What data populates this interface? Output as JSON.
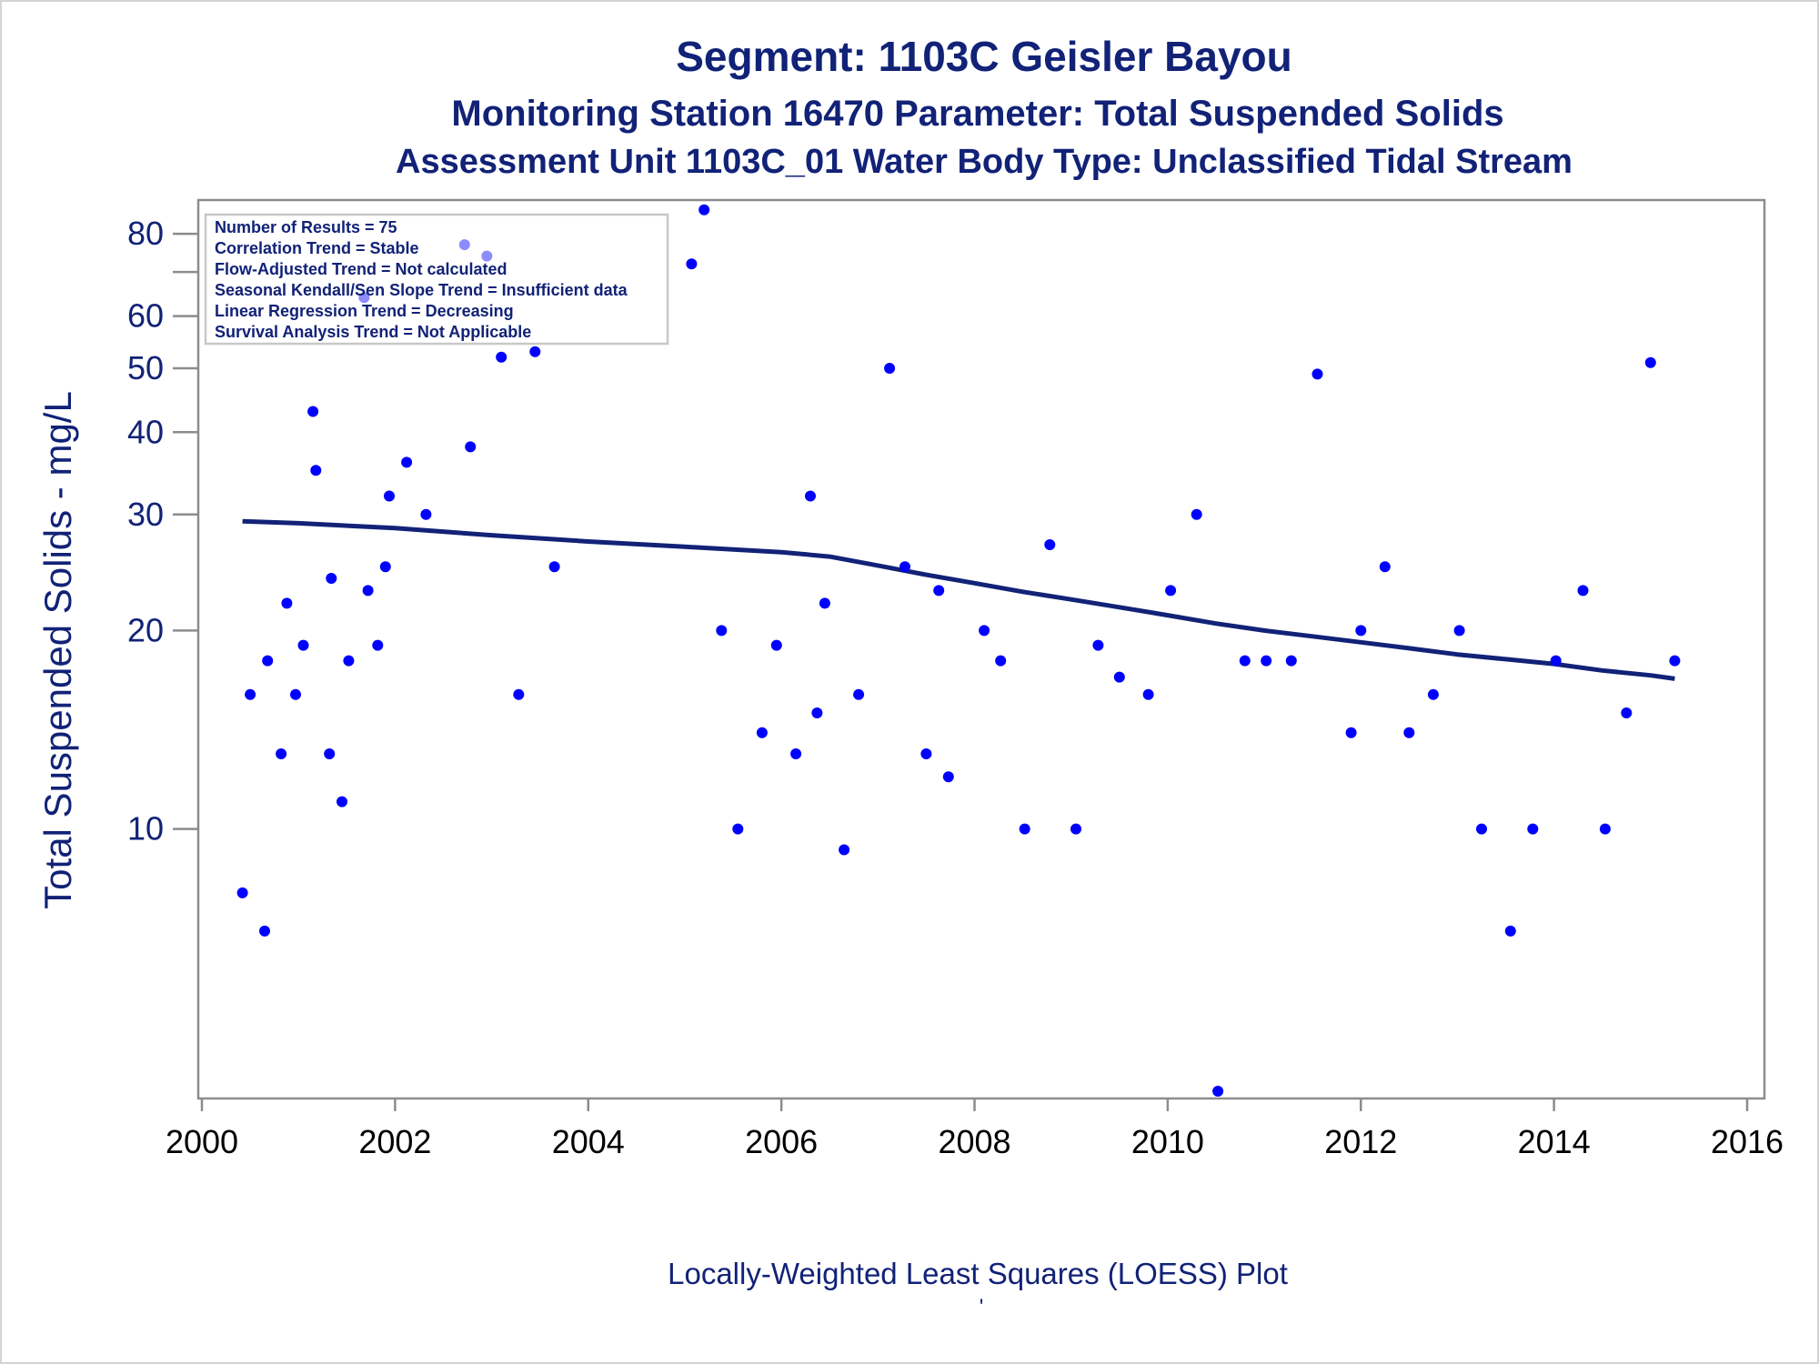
{
  "colors": {
    "title": "#112277",
    "axis_text": "#112277",
    "x_tick_text": "#000000",
    "points": "#0000ff",
    "loess_line": "#112277",
    "plot_border": "#8c8c8c",
    "inset_border": "#c8c8c8"
  },
  "chart_data": {
    "type": "scatter",
    "title": "Segment: 1103C  Geisler Bayou",
    "subtitle": "Monitoring Station 16470 Parameter: Total Suspended Solids",
    "subtitle2": "Assessment Unit 1103C_01   Water Body Type: Unclassified Tidal Stream",
    "xlabel": "Locally-Weighted Least Squares (LOESS) Plot",
    "footnote_mark": "'",
    "ylabel": "Total Suspended Solids - mg/L",
    "x_axis": {
      "min": 2000,
      "max": 2016,
      "ticks": [
        "2000",
        "2002",
        "2004",
        "2006",
        "2008",
        "2010",
        "2012",
        "2014",
        "2016"
      ]
    },
    "y_axis": {
      "scale": "log",
      "min": 3.9,
      "max": 90,
      "ticks": [
        {
          "value": 10,
          "label": "10"
        },
        {
          "value": 20,
          "label": "20"
        },
        {
          "value": 30,
          "label": "30"
        },
        {
          "value": 40,
          "label": "40"
        },
        {
          "value": 50,
          "label": "50"
        },
        {
          "value": 60,
          "label": "60"
        },
        {
          "value": 70,
          "label": ""
        },
        {
          "value": 80,
          "label": "80"
        }
      ]
    },
    "grid": false,
    "stats_box": {
      "placement": "top-left",
      "lines": [
        "Number of Results = 75",
        "Correlation Trend = Stable",
        "Flow-Adjusted Trend = Not calculated",
        "Seasonal Kendall/Sen Slope Trend = Insufficient data",
        "Linear Regression Trend = Decreasing",
        "Survival Analysis Trend = Not Applicable"
      ]
    },
    "series": [
      {
        "kind": "scatter",
        "points": [
          [
            2000.42,
            8
          ],
          [
            2000.5,
            16
          ],
          [
            2000.65,
            7
          ],
          [
            2000.68,
            18
          ],
          [
            2000.82,
            13
          ],
          [
            2000.88,
            22
          ],
          [
            2000.97,
            16
          ],
          [
            2001.05,
            19
          ],
          [
            2001.15,
            43
          ],
          [
            2001.18,
            35
          ],
          [
            2001.32,
            13
          ],
          [
            2001.34,
            24
          ],
          [
            2001.45,
            11
          ],
          [
            2001.52,
            18
          ],
          [
            2001.68,
            64
          ],
          [
            2001.72,
            23
          ],
          [
            2001.82,
            19
          ],
          [
            2001.9,
            25
          ],
          [
            2001.94,
            32
          ],
          [
            2002.12,
            36
          ],
          [
            2002.32,
            30
          ],
          [
            2002.72,
            77
          ],
          [
            2002.78,
            38
          ],
          [
            2002.95,
            74
          ],
          [
            2003.1,
            52
          ],
          [
            2003.28,
            16
          ],
          [
            2003.45,
            53
          ],
          [
            2003.65,
            25
          ],
          [
            2005.07,
            72
          ],
          [
            2005.2,
            87
          ],
          [
            2005.38,
            20
          ],
          [
            2005.55,
            10
          ],
          [
            2005.8,
            14
          ],
          [
            2005.95,
            19
          ],
          [
            2006.15,
            13
          ],
          [
            2006.3,
            32
          ],
          [
            2006.37,
            15
          ],
          [
            2006.45,
            22
          ],
          [
            2006.65,
            9.3
          ],
          [
            2006.8,
            16
          ],
          [
            2007.12,
            50
          ],
          [
            2007.28,
            25
          ],
          [
            2007.5,
            13
          ],
          [
            2007.63,
            23
          ],
          [
            2007.73,
            12
          ],
          [
            2008.1,
            20
          ],
          [
            2008.27,
            18
          ],
          [
            2008.52,
            10
          ],
          [
            2008.78,
            27
          ],
          [
            2009.05,
            10
          ],
          [
            2009.28,
            19
          ],
          [
            2009.5,
            17
          ],
          [
            2009.8,
            16
          ],
          [
            2010.03,
            23
          ],
          [
            2010.3,
            30
          ],
          [
            2010.52,
            4.0
          ],
          [
            2010.8,
            18
          ],
          [
            2011.02,
            18
          ],
          [
            2011.28,
            18
          ],
          [
            2011.55,
            49
          ],
          [
            2011.9,
            14
          ],
          [
            2012.0,
            20
          ],
          [
            2012.25,
            25
          ],
          [
            2012.5,
            14
          ],
          [
            2012.75,
            16
          ],
          [
            2013.02,
            20
          ],
          [
            2013.25,
            10
          ],
          [
            2013.55,
            7
          ],
          [
            2013.78,
            10
          ],
          [
            2014.02,
            18
          ],
          [
            2014.3,
            23
          ],
          [
            2014.53,
            10
          ],
          [
            2014.75,
            15
          ],
          [
            2015.0,
            51
          ],
          [
            2015.25,
            18
          ]
        ]
      },
      {
        "kind": "line",
        "points": [
          [
            2000.42,
            29.3
          ],
          [
            2001.0,
            29.1
          ],
          [
            2002.0,
            28.6
          ],
          [
            2003.0,
            27.9
          ],
          [
            2004.0,
            27.3
          ],
          [
            2005.0,
            26.8
          ],
          [
            2006.0,
            26.3
          ],
          [
            2006.5,
            25.9
          ],
          [
            2007.0,
            25.1
          ],
          [
            2007.5,
            24.3
          ],
          [
            2008.0,
            23.6
          ],
          [
            2008.5,
            22.9
          ],
          [
            2009.0,
            22.3
          ],
          [
            2009.5,
            21.7
          ],
          [
            2010.0,
            21.1
          ],
          [
            2010.5,
            20.5
          ],
          [
            2011.0,
            20.0
          ],
          [
            2011.5,
            19.6
          ],
          [
            2012.0,
            19.2
          ],
          [
            2012.5,
            18.8
          ],
          [
            2013.0,
            18.4
          ],
          [
            2013.5,
            18.1
          ],
          [
            2014.0,
            17.8
          ],
          [
            2014.5,
            17.4
          ],
          [
            2015.0,
            17.1
          ],
          [
            2015.25,
            16.9
          ]
        ]
      }
    ]
  }
}
